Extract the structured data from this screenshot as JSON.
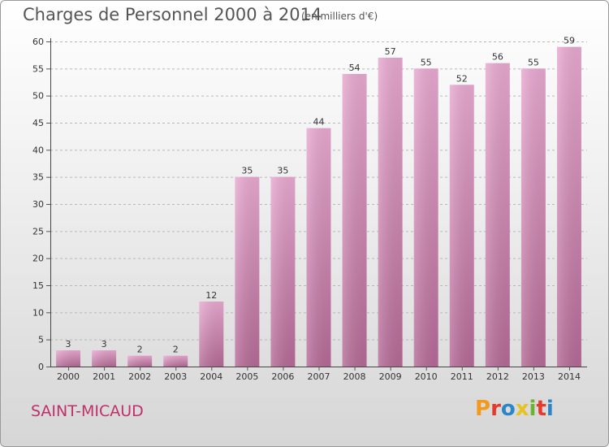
{
  "header": {
    "title": "Charges de Personnel 2000 à 2014",
    "subtitle": "(en milliers d'€)"
  },
  "footer": {
    "commune": "SAINT-MICAUD",
    "logo_letters": [
      "P",
      "r",
      "o",
      "x",
      "i",
      "t",
      "i"
    ]
  },
  "colors": {
    "bar_top": "#e8a9d0",
    "bar_bottom": "#b56a96",
    "commune_text": "#c0306a",
    "logo": [
      "#f39a1e",
      "#e83a2a",
      "#2a86c8",
      "#e8c21e",
      "#6ab52e",
      "#e83a2a",
      "#2a86c8"
    ]
  },
  "chart_data": {
    "type": "bar",
    "title": "Charges de Personnel 2000 à 2014",
    "subtitle": "(en milliers d'€)",
    "categories": [
      "2000",
      "2001",
      "2002",
      "2003",
      "2004",
      "2005",
      "2006",
      "2007",
      "2008",
      "2009",
      "2010",
      "2011",
      "2012",
      "2013",
      "2014"
    ],
    "values": [
      3,
      3,
      2,
      2,
      12,
      35,
      35,
      44,
      54,
      57,
      55,
      52,
      56,
      55,
      59
    ],
    "ylim": [
      0,
      60
    ],
    "yticks": [
      0,
      5,
      10,
      15,
      20,
      25,
      30,
      35,
      40,
      45,
      50,
      55,
      60
    ],
    "grid": true,
    "xlabel": "",
    "ylabel": ""
  }
}
